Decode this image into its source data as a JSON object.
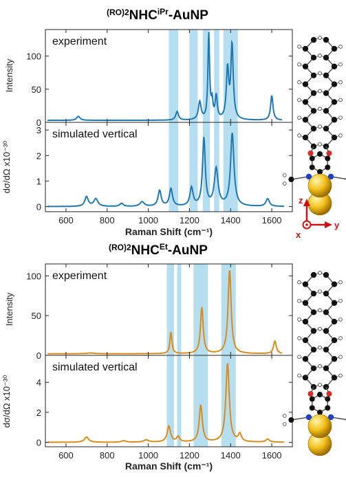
{
  "sections": [
    {
      "title_main": "NHC",
      "title_prefix_sup": "(RO)2",
      "title_sup": "iPr",
      "title_suffix": "-AuNP",
      "line_color": "#1f77b4",
      "highlight_color": "#a9d8ee"
    },
    {
      "title_main": "NHC",
      "title_prefix_sup": "(RO)2",
      "title_sup": "Et",
      "title_suffix": "-AuNP",
      "line_color": "#d98b1c",
      "highlight_color": "#a9d8ee"
    }
  ],
  "inset_axes": {
    "z": "z",
    "y": "y",
    "x": "x",
    "color": "#cc1111"
  },
  "chart_data": [
    {
      "type": "line",
      "section": 0,
      "panel": "experiment",
      "annotation": "experiment",
      "xlabel": "",
      "ylabel": "Intensity",
      "xlim": [
        500,
        1700
      ],
      "ylim": [
        0,
        140
      ],
      "xticks": [
        600,
        800,
        1000,
        1200,
        1400,
        1600
      ],
      "yticks": [
        0,
        50,
        100
      ],
      "highlight_bands": [
        [
          1100,
          1145
        ],
        [
          1200,
          1240
        ],
        [
          1265,
          1300
        ],
        [
          1320,
          1345
        ],
        [
          1365,
          1435
        ]
      ],
      "baseline": 3,
      "peaks": [
        [
          660,
          6,
          10
        ],
        [
          1140,
          13,
          8
        ],
        [
          1250,
          27,
          8
        ],
        [
          1294,
          128,
          5
        ],
        [
          1310,
          25,
          5
        ],
        [
          1330,
          35,
          6
        ],
        [
          1385,
          75,
          7
        ],
        [
          1407,
          112,
          7
        ],
        [
          1600,
          37,
          7
        ]
      ],
      "x_range": [
        510,
        1650
      ],
      "series": [
        {
          "name": "",
          "values": []
        }
      ]
    },
    {
      "type": "line",
      "section": 0,
      "panel": "simulated",
      "annotation": "simulated vertical",
      "xlabel": "Raman Shift (cm⁻¹)",
      "ylabel": "dσ/dΩ x10⁻³⁰",
      "xlim": [
        500,
        1700
      ],
      "ylim": [
        -0.2,
        3.3
      ],
      "xticks": [
        600,
        800,
        1000,
        1200,
        1400,
        1600
      ],
      "yticks": [
        0,
        1,
        2,
        3
      ],
      "highlight_bands": [
        [
          1100,
          1145
        ],
        [
          1200,
          1240
        ],
        [
          1265,
          1300
        ],
        [
          1320,
          1345
        ],
        [
          1365,
          1435
        ]
      ],
      "baseline": 0,
      "peaks": [
        [
          700,
          0.38,
          10
        ],
        [
          745,
          0.3,
          12
        ],
        [
          870,
          0.12,
          10
        ],
        [
          970,
          0.18,
          12
        ],
        [
          1055,
          0.62,
          9
        ],
        [
          1110,
          0.68,
          9
        ],
        [
          1210,
          0.72,
          9
        ],
        [
          1270,
          2.65,
          8
        ],
        [
          1330,
          1.45,
          11
        ],
        [
          1408,
          2.85,
          10
        ],
        [
          1580,
          0.3,
          10
        ]
      ],
      "x_range": [
        510,
        1660
      ],
      "series": [
        {
          "name": "",
          "values": []
        }
      ]
    },
    {
      "type": "line",
      "section": 1,
      "panel": "experiment",
      "annotation": "experiment",
      "xlabel": "",
      "ylabel": "Intensity",
      "xlim": [
        500,
        1700
      ],
      "ylim": [
        0,
        115
      ],
      "xticks": [
        600,
        800,
        1000,
        1200,
        1400,
        1600
      ],
      "yticks": [
        0,
        50,
        100
      ],
      "highlight_bands": [
        [
          1090,
          1125
        ],
        [
          1140,
          1160
        ],
        [
          1220,
          1290
        ],
        [
          1355,
          1425
        ]
      ],
      "baseline": 2,
      "peaks": [
        [
          720,
          1,
          20
        ],
        [
          1110,
          27,
          6
        ],
        [
          1260,
          58,
          8
        ],
        [
          1395,
          105,
          9
        ],
        [
          1615,
          16,
          8
        ]
      ],
      "x_range": [
        510,
        1650
      ],
      "series": [
        {
          "name": "",
          "values": []
        }
      ]
    },
    {
      "type": "line",
      "section": 1,
      "panel": "simulated",
      "annotation": "simulated vertical",
      "xlabel": "Raman Shift (cm⁻¹)",
      "ylabel": "dσ/dΩ x10⁻³⁰",
      "xlim": [
        500,
        1700
      ],
      "ylim": [
        -0.3,
        5.8
      ],
      "xticks": [
        600,
        800,
        1000,
        1200,
        1400,
        1600
      ],
      "yticks": [
        0,
        2,
        4
      ],
      "highlight_bands": [
        [
          1090,
          1125
        ],
        [
          1140,
          1160
        ],
        [
          1220,
          1290
        ],
        [
          1355,
          1425
        ]
      ],
      "baseline": 0,
      "peaks": [
        [
          700,
          0.35,
          12
        ],
        [
          880,
          0.1,
          12
        ],
        [
          990,
          0.15,
          14
        ],
        [
          1100,
          1.05,
          10
        ],
        [
          1145,
          0.35,
          9
        ],
        [
          1255,
          2.45,
          9
        ],
        [
          1385,
          5.25,
          10
        ],
        [
          1445,
          0.5,
          9
        ],
        [
          1580,
          0.2,
          10
        ]
      ],
      "x_range": [
        510,
        1660
      ],
      "series": [
        {
          "name": "",
          "values": []
        }
      ]
    }
  ]
}
